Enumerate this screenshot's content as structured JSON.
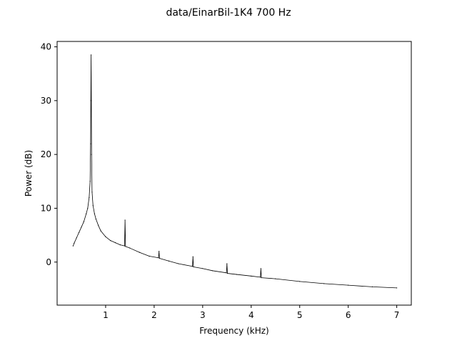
{
  "chart_data": {
    "type": "line",
    "title": "data/EinarBil-1K4   700 Hz",
    "xlabel": "Frequency (kHz)",
    "ylabel": "Power (dB)",
    "xlim": [
      0.0,
      7.3
    ],
    "ylim": [
      -8,
      41
    ],
    "x_ticks": [
      1,
      2,
      3,
      4,
      5,
      6,
      7
    ],
    "y_ticks": [
      0,
      10,
      20,
      30,
      40
    ],
    "grid": false,
    "line_color": "#000000",
    "series": [
      {
        "x": [
          0.33,
          0.35,
          0.4,
          0.45,
          0.5,
          0.55,
          0.6,
          0.63,
          0.66,
          0.68,
          0.69,
          0.695,
          0.7,
          0.705,
          0.71,
          0.72,
          0.74,
          0.77,
          0.8,
          0.85,
          0.9,
          1.0,
          1.1,
          1.2,
          1.3,
          1.39,
          1.4,
          1.41,
          1.5,
          1.7,
          1.9,
          2.09,
          2.1,
          2.11,
          2.3,
          2.5,
          2.79,
          2.8,
          2.81,
          3.0,
          3.2,
          3.49,
          3.5,
          3.51,
          3.7,
          4.0,
          4.19,
          4.2,
          4.21,
          4.5,
          5.0,
          5.5,
          6.0,
          6.5,
          7.0
        ],
        "y": [
          3.0,
          3.5,
          4.5,
          5.5,
          6.5,
          7.5,
          9.0,
          10.0,
          12.0,
          15.0,
          22.0,
          30.0,
          38.5,
          30.0,
          20.0,
          13.0,
          10.5,
          9.0,
          8.0,
          6.8,
          5.8,
          4.7,
          4.0,
          3.6,
          3.2,
          3.0,
          7.8,
          2.9,
          2.6,
          1.8,
          1.1,
          0.8,
          2.0,
          0.7,
          0.2,
          -0.3,
          -0.8,
          1.0,
          -0.9,
          -1.2,
          -1.6,
          -2.0,
          -0.3,
          -2.1,
          -2.3,
          -2.6,
          -2.8,
          -1.2,
          -2.9,
          -3.1,
          -3.6,
          -4.0,
          -4.3,
          -4.6,
          -4.8
        ]
      }
    ]
  }
}
